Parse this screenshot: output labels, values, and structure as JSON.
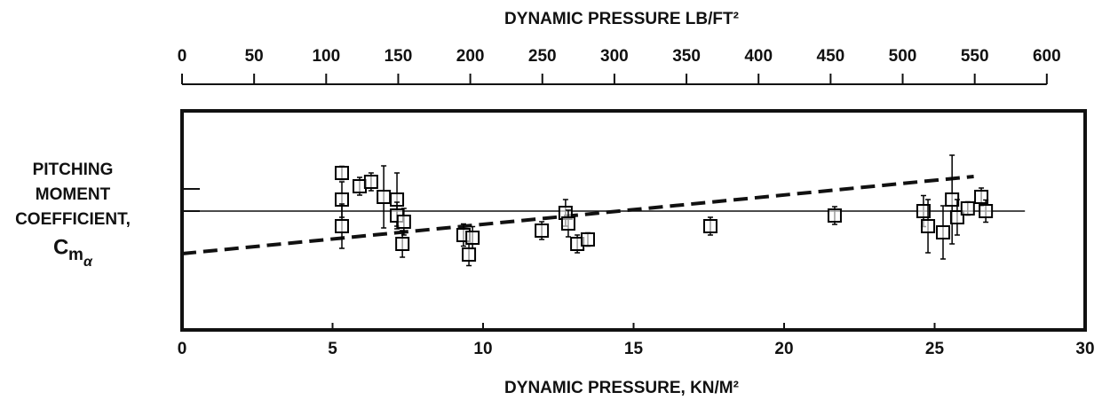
{
  "chart_data": {
    "type": "scatter",
    "title": "DYNAMIC PRESSURE LB/FT²",
    "x_label": "DYNAMIC PRESSURE, KN/M²",
    "y_label": [
      "PITCHING",
      "MOMENT",
      "COEFFICIENT,"
    ],
    "y_label_symbol": "C",
    "y_label_subscript": "m",
    "y_label_subsubscript": "α",
    "xlim": [
      0,
      30
    ],
    "xticks": [
      0,
      5,
      10,
      15,
      20,
      25,
      30
    ],
    "x2lim": [
      0,
      626.6
    ],
    "x2ticks": [
      0,
      50,
      100,
      150,
      200,
      250,
      300,
      350,
      400,
      450,
      500,
      550,
      600
    ],
    "ylim": [
      -5.36,
      4.52
    ],
    "yticks": [
      0,
      1
    ],
    "color": "#000000",
    "series": [
      {
        "x": [
          5.31,
          5.31,
          5.31,
          5.9,
          6.28,
          6.7,
          7.14,
          7.14,
          7.37,
          7.32,
          9.35,
          9.65,
          9.53,
          11.95,
          12.74,
          12.83,
          13.13,
          13.48,
          17.55,
          21.68,
          24.63,
          24.78,
          25.28,
          25.58,
          25.75,
          26.1,
          26.55,
          26.7
        ],
        "values": [
          1.72,
          0.52,
          -0.68,
          1.12,
          1.32,
          0.64,
          0.52,
          -0.2,
          -0.48,
          -1.48,
          -1.08,
          -1.2,
          -1.96,
          -0.88,
          -0.08,
          -0.56,
          -1.48,
          -1.28,
          -0.68,
          -0.2,
          0,
          -0.68,
          -0.96,
          0.52,
          -0.28,
          0.12,
          0.64,
          0
        ],
        "errors": [
          0.3,
          0.8,
          1.0,
          0.4,
          0.4,
          1.4,
          1.2,
          0.6,
          0.6,
          0.6,
          0.5,
          0.5,
          0.5,
          0.4,
          0.6,
          0.6,
          0.4,
          0.3,
          0.4,
          0.4,
          0.7,
          1.2,
          1.2,
          2.0,
          0.8,
          0.3,
          0.4,
          0.5
        ]
      }
    ],
    "lines": [
      {
        "style": "dashed",
        "x": [
          0,
          26.3
        ],
        "values": [
          -1.92,
          1.56
        ]
      },
      {
        "style": "solid",
        "x": [
          0,
          28
        ],
        "values": [
          0,
          0
        ]
      }
    ]
  }
}
